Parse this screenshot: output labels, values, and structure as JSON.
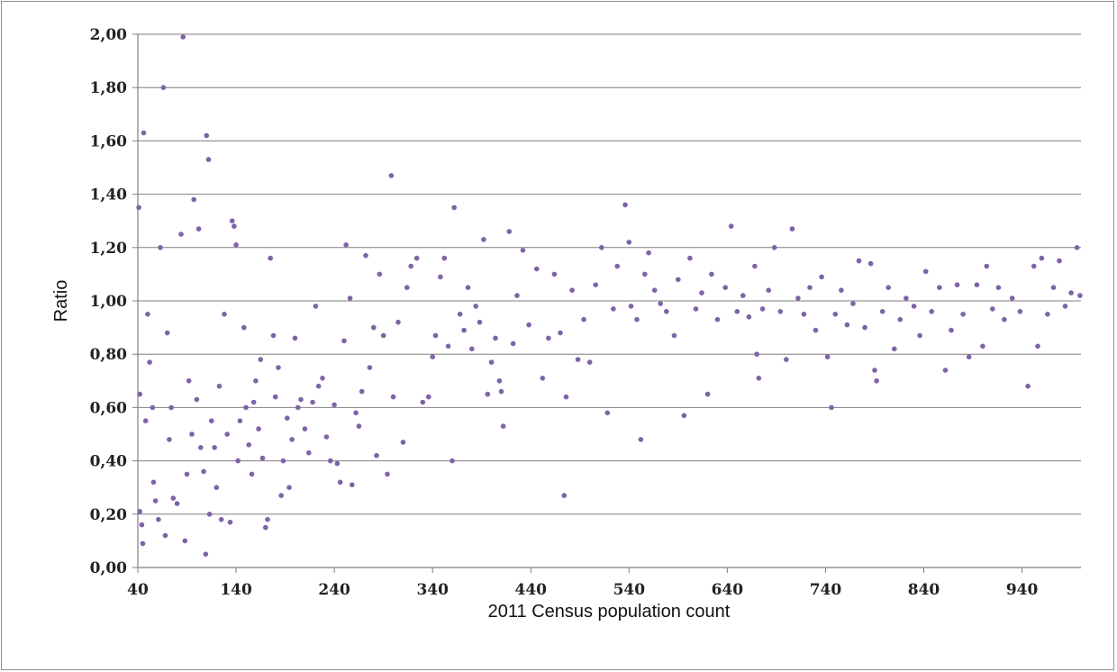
{
  "chart_data": {
    "type": "scatter",
    "title": "",
    "xlabel": "2011 Census population count",
    "ylabel": "Ratio",
    "xlim": [
      40,
      1000
    ],
    "ylim": [
      0,
      2
    ],
    "x_ticks": [
      40,
      140,
      240,
      340,
      440,
      540,
      640,
      740,
      840,
      940
    ],
    "x_tick_labels": [
      "40",
      "140",
      "240",
      "340",
      "440",
      "540",
      "640",
      "740",
      "840",
      "940"
    ],
    "y_ticks": [
      0,
      0.2,
      0.4,
      0.6,
      0.8,
      1.0,
      1.2,
      1.4,
      1.6,
      1.8,
      2.0
    ],
    "y_tick_labels": [
      "0,00",
      "0,20",
      "0,40",
      "0,60",
      "0,80",
      "1,00",
      "1,20",
      "1,40",
      "1,60",
      "1,80",
      "2,00"
    ],
    "grid": "horizontal",
    "legend": "none",
    "marker_color": "#7f63a6",
    "series": [
      {
        "points": [
          [
            41,
            1.35
          ],
          [
            42,
            0.65
          ],
          [
            42,
            0.21
          ],
          [
            44,
            0.16
          ],
          [
            45,
            0.09
          ],
          [
            46,
            1.63
          ],
          [
            48,
            0.55
          ],
          [
            50,
            0.95
          ],
          [
            52,
            0.77
          ],
          [
            55,
            0.6
          ],
          [
            56,
            0.32
          ],
          [
            58,
            0.25
          ],
          [
            61,
            0.18
          ],
          [
            63,
            1.2
          ],
          [
            66,
            1.8
          ],
          [
            68,
            0.12
          ],
          [
            70,
            0.88
          ],
          [
            72,
            0.48
          ],
          [
            74,
            0.6
          ],
          [
            76,
            0.26
          ],
          [
            80,
            0.24
          ],
          [
            84,
            1.25
          ],
          [
            86,
            1.99
          ],
          [
            88,
            0.1
          ],
          [
            90,
            0.35
          ],
          [
            92,
            0.7
          ],
          [
            95,
            0.5
          ],
          [
            97,
            1.38
          ],
          [
            100,
            0.63
          ],
          [
            102,
            1.27
          ],
          [
            104,
            0.45
          ],
          [
            107,
            0.36
          ],
          [
            109,
            0.05
          ],
          [
            110,
            1.62
          ],
          [
            112,
            1.53
          ],
          [
            113,
            0.2
          ],
          [
            115,
            0.55
          ],
          [
            118,
            0.45
          ],
          [
            120,
            0.3
          ],
          [
            123,
            0.68
          ],
          [
            125,
            0.18
          ],
          [
            128,
            0.95
          ],
          [
            131,
            0.5
          ],
          [
            134,
            0.17
          ],
          [
            136,
            1.3
          ],
          [
            138,
            1.28
          ],
          [
            140,
            1.21
          ],
          [
            142,
            0.4
          ],
          [
            144,
            0.55
          ],
          [
            148,
            0.9
          ],
          [
            150,
            0.6
          ],
          [
            153,
            0.46
          ],
          [
            156,
            0.35
          ],
          [
            158,
            0.62
          ],
          [
            160,
            0.7
          ],
          [
            163,
            0.52
          ],
          [
            165,
            0.78
          ],
          [
            167,
            0.41
          ],
          [
            170,
            0.15
          ],
          [
            172,
            0.18
          ],
          [
            175,
            1.16
          ],
          [
            178,
            0.87
          ],
          [
            180,
            0.64
          ],
          [
            183,
            0.75
          ],
          [
            186,
            0.27
          ],
          [
            188,
            0.4
          ],
          [
            192,
            0.56
          ],
          [
            194,
            0.3
          ],
          [
            197,
            0.48
          ],
          [
            200,
            0.86
          ],
          [
            203,
            0.6
          ],
          [
            206,
            0.63
          ],
          [
            210,
            0.52
          ],
          [
            214,
            0.43
          ],
          [
            218,
            0.62
          ],
          [
            221,
            0.98
          ],
          [
            224,
            0.68
          ],
          [
            228,
            0.71
          ],
          [
            232,
            0.49
          ],
          [
            236,
            0.4
          ],
          [
            240,
            0.61
          ],
          [
            243,
            0.39
          ],
          [
            246,
            0.32
          ],
          [
            250,
            0.85
          ],
          [
            252,
            1.21
          ],
          [
            256,
            1.01
          ],
          [
            258,
            0.31
          ],
          [
            262,
            0.58
          ],
          [
            265,
            0.53
          ],
          [
            268,
            0.66
          ],
          [
            272,
            1.17
          ],
          [
            276,
            0.75
          ],
          [
            280,
            0.9
          ],
          [
            283,
            0.42
          ],
          [
            286,
            1.1
          ],
          [
            290,
            0.87
          ],
          [
            294,
            0.35
          ],
          [
            298,
            1.47
          ],
          [
            300,
            0.64
          ],
          [
            305,
            0.92
          ],
          [
            310,
            0.47
          ],
          [
            314,
            1.05
          ],
          [
            318,
            1.13
          ],
          [
            324,
            1.16
          ],
          [
            330,
            0.62
          ],
          [
            336,
            0.64
          ],
          [
            340,
            0.79
          ],
          [
            343,
            0.87
          ],
          [
            348,
            1.09
          ],
          [
            352,
            1.16
          ],
          [
            356,
            0.83
          ],
          [
            360,
            0.4
          ],
          [
            362,
            1.35
          ],
          [
            368,
            0.95
          ],
          [
            372,
            0.89
          ],
          [
            376,
            1.05
          ],
          [
            380,
            0.82
          ],
          [
            384,
            0.98
          ],
          [
            388,
            0.92
          ],
          [
            392,
            1.23
          ],
          [
            396,
            0.65
          ],
          [
            400,
            0.77
          ],
          [
            404,
            0.86
          ],
          [
            408,
            0.7
          ],
          [
            410,
            0.66
          ],
          [
            412,
            0.53
          ],
          [
            418,
            1.26
          ],
          [
            422,
            0.84
          ],
          [
            426,
            1.02
          ],
          [
            432,
            1.19
          ],
          [
            438,
            0.91
          ],
          [
            446,
            1.12
          ],
          [
            452,
            0.71
          ],
          [
            458,
            0.86
          ],
          [
            464,
            1.1
          ],
          [
            470,
            0.88
          ],
          [
            474,
            0.27
          ],
          [
            476,
            0.64
          ],
          [
            482,
            1.04
          ],
          [
            488,
            0.78
          ],
          [
            494,
            0.93
          ],
          [
            500,
            0.77
          ],
          [
            506,
            1.06
          ],
          [
            512,
            1.2
          ],
          [
            518,
            0.58
          ],
          [
            524,
            0.97
          ],
          [
            528,
            1.13
          ],
          [
            536,
            1.36
          ],
          [
            540,
            1.22
          ],
          [
            542,
            0.98
          ],
          [
            548,
            0.93
          ],
          [
            552,
            0.48
          ],
          [
            556,
            1.1
          ],
          [
            560,
            1.18
          ],
          [
            566,
            1.04
          ],
          [
            572,
            0.99
          ],
          [
            578,
            0.96
          ],
          [
            586,
            0.87
          ],
          [
            590,
            1.08
          ],
          [
            596,
            0.57
          ],
          [
            602,
            1.16
          ],
          [
            608,
            0.97
          ],
          [
            614,
            1.03
          ],
          [
            620,
            0.65
          ],
          [
            624,
            1.1
          ],
          [
            630,
            0.93
          ],
          [
            638,
            1.05
          ],
          [
            644,
            1.28
          ],
          [
            650,
            0.96
          ],
          [
            656,
            1.02
          ],
          [
            662,
            0.94
          ],
          [
            668,
            1.13
          ],
          [
            670,
            0.8
          ],
          [
            672,
            0.71
          ],
          [
            676,
            0.97
          ],
          [
            682,
            1.04
          ],
          [
            688,
            1.2
          ],
          [
            694,
            0.96
          ],
          [
            700,
            0.78
          ],
          [
            706,
            1.27
          ],
          [
            712,
            1.01
          ],
          [
            718,
            0.95
          ],
          [
            724,
            1.05
          ],
          [
            730,
            0.89
          ],
          [
            736,
            1.09
          ],
          [
            742,
            0.79
          ],
          [
            746,
            0.6
          ],
          [
            750,
            0.95
          ],
          [
            756,
            1.04
          ],
          [
            762,
            0.91
          ],
          [
            768,
            0.99
          ],
          [
            774,
            1.15
          ],
          [
            780,
            0.9
          ],
          [
            786,
            1.14
          ],
          [
            790,
            0.74
          ],
          [
            792,
            0.7
          ],
          [
            798,
            0.96
          ],
          [
            804,
            1.05
          ],
          [
            810,
            0.82
          ],
          [
            816,
            0.93
          ],
          [
            822,
            1.01
          ],
          [
            830,
            0.98
          ],
          [
            836,
            0.87
          ],
          [
            842,
            1.11
          ],
          [
            848,
            0.96
          ],
          [
            856,
            1.05
          ],
          [
            862,
            0.74
          ],
          [
            868,
            0.89
          ],
          [
            874,
            1.06
          ],
          [
            880,
            0.95
          ],
          [
            886,
            0.79
          ],
          [
            894,
            1.06
          ],
          [
            900,
            0.83
          ],
          [
            904,
            1.13
          ],
          [
            910,
            0.97
          ],
          [
            916,
            1.05
          ],
          [
            922,
            0.93
          ],
          [
            930,
            1.01
          ],
          [
            938,
            0.96
          ],
          [
            946,
            0.68
          ],
          [
            952,
            1.13
          ],
          [
            956,
            0.83
          ],
          [
            960,
            1.16
          ],
          [
            966,
            0.95
          ],
          [
            972,
            1.05
          ],
          [
            978,
            1.15
          ],
          [
            984,
            0.98
          ],
          [
            990,
            1.03
          ],
          [
            996,
            1.2
          ],
          [
            999,
            1.02
          ]
        ]
      }
    ]
  }
}
